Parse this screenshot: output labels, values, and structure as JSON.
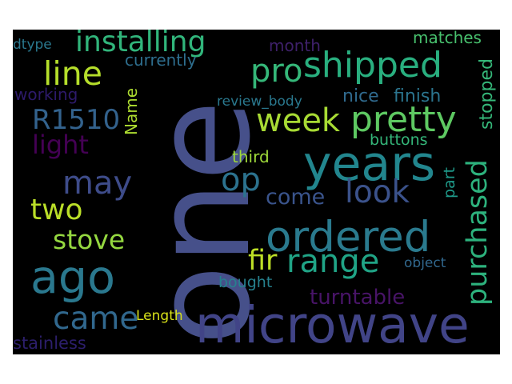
{
  "words": [
    {
      "id": "one",
      "text": "one",
      "color": "#46508a"
    },
    {
      "id": "microwave",
      "text": "microwave",
      "color": "#414487"
    },
    {
      "id": "years",
      "text": "years",
      "color": "#22868e"
    },
    {
      "id": "ordered",
      "text": "ordered",
      "color": "#2a7a8e"
    },
    {
      "id": "ago",
      "text": "ago",
      "color": "#2a788e"
    },
    {
      "id": "shipped",
      "text": "shipped",
      "color": "#29af7f"
    },
    {
      "id": "pretty",
      "text": "pretty",
      "color": "#5ec962"
    },
    {
      "id": "installing",
      "text": "installing",
      "color": "#31b57b"
    },
    {
      "id": "week",
      "text": "week",
      "color": "#a8db34"
    },
    {
      "id": "pro",
      "text": "pro",
      "color": "#35b779"
    },
    {
      "id": "line",
      "text": "line",
      "color": "#b5de2b"
    },
    {
      "id": "look",
      "text": "look",
      "color": "#3b528b"
    },
    {
      "id": "may",
      "text": "may",
      "color": "#3e4c8a"
    },
    {
      "id": "op",
      "text": "op",
      "color": "#2c728e"
    },
    {
      "id": "fir",
      "text": "fir",
      "color": "#bddf26"
    },
    {
      "id": "range",
      "text": "range",
      "color": "#20a486"
    },
    {
      "id": "purchased",
      "text": "purchased",
      "color": "#2db27d"
    },
    {
      "id": "two",
      "text": "two",
      "color": "#bade28"
    },
    {
      "id": "stove",
      "text": "stove",
      "color": "#95d840"
    },
    {
      "id": "came",
      "text": "came",
      "color": "#31688e"
    },
    {
      "id": "R1510",
      "text": "R1510",
      "color": "#33628d"
    },
    {
      "id": "light",
      "text": "light",
      "color": "#440154"
    },
    {
      "id": "come",
      "text": "come",
      "color": "#3a548c"
    },
    {
      "id": "turntable",
      "text": "turntable",
      "color": "#481467"
    },
    {
      "id": "stopped",
      "text": "stopped",
      "color": "#35b779"
    },
    {
      "id": "finish",
      "text": "finish",
      "color": "#2b748e"
    },
    {
      "id": "nice",
      "text": "nice",
      "color": "#306a8e"
    },
    {
      "id": "currently",
      "text": "currently",
      "color": "#2e6e8e"
    },
    {
      "id": "matches",
      "text": "matches",
      "color": "#48c16e"
    },
    {
      "id": "month",
      "text": "month",
      "color": "#3e206a"
    },
    {
      "id": "working",
      "text": "working",
      "color": "#2d1a6a"
    },
    {
      "id": "Name",
      "text": "Name",
      "color": "#addc30"
    },
    {
      "id": "review_body",
      "text": "review_body",
      "color": "#2a788e"
    },
    {
      "id": "buttons",
      "text": "buttons",
      "color": "#34b679"
    },
    {
      "id": "third",
      "text": "third",
      "color": "#9fda3a"
    },
    {
      "id": "part",
      "text": "part",
      "color": "#1f9a8a"
    },
    {
      "id": "object",
      "text": "object",
      "color": "#31688e"
    },
    {
      "id": "bought",
      "text": "bought",
      "color": "#26818e"
    },
    {
      "id": "Length",
      "text": "Length",
      "color": "#d8e219"
    },
    {
      "id": "stainless",
      "text": "stainless",
      "color": "#2c1e6b"
    },
    {
      "id": "dtype",
      "text": "dtype",
      "color": "#2a788e"
    }
  ]
}
